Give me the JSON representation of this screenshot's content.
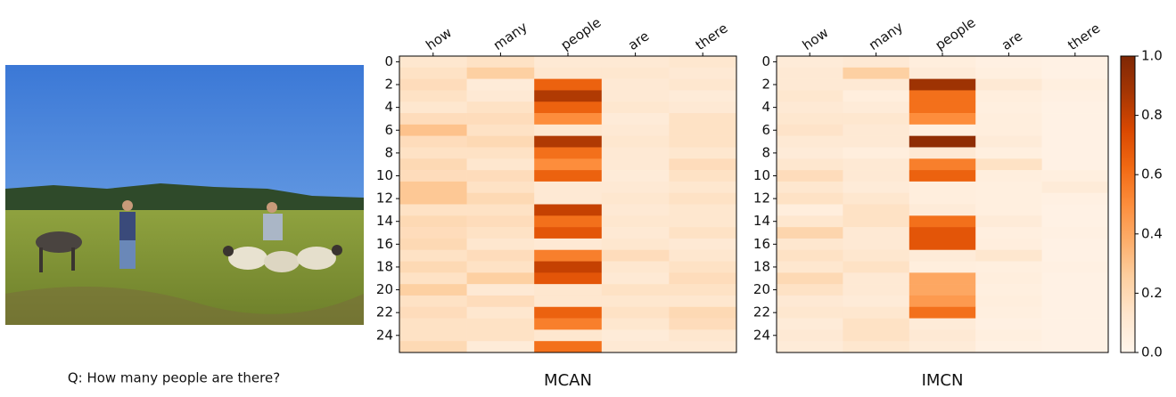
{
  "question": "Q: How many people are there?",
  "colorbar": {
    "zlim": [
      0,
      1
    ],
    "zticks": [
      {
        "value": 0,
        "label": "0.0"
      },
      {
        "value": 0.2,
        "label": "0.2"
      },
      {
        "value": 0.4,
        "label": "0.4"
      },
      {
        "value": 0.6,
        "label": "0.6"
      },
      {
        "value": 0.8,
        "label": "0.8"
      },
      {
        "value": 1,
        "label": "1.0"
      }
    ],
    "colors": [
      "#fff5eb",
      "#fee6ce",
      "#fdd0a2",
      "#fdae6b",
      "#fd8d3c",
      "#f16913",
      "#d94801",
      "#a63603",
      "#7f2704"
    ]
  },
  "chart_data": [
    {
      "type": "heatmap",
      "title": "MCAN",
      "categories": [
        "how",
        "many",
        "people",
        "are",
        "there"
      ],
      "ylim": [
        -0.5,
        25.5
      ],
      "yticks": [
        0,
        2,
        4,
        6,
        8,
        10,
        12,
        14,
        16,
        18,
        20,
        22,
        24
      ],
      "z": [
        [
          0.12,
          0.15,
          0.1,
          0.1,
          0.12
        ],
        [
          0.15,
          0.25,
          0.12,
          0.12,
          0.1
        ],
        [
          0.18,
          0.08,
          0.65,
          0.1,
          0.12
        ],
        [
          0.15,
          0.1,
          0.85,
          0.1,
          0.08
        ],
        [
          0.12,
          0.15,
          0.65,
          0.12,
          0.1
        ],
        [
          0.18,
          0.18,
          0.5,
          0.08,
          0.15
        ],
        [
          0.3,
          0.15,
          0.12,
          0.1,
          0.15
        ],
        [
          0.18,
          0.2,
          0.85,
          0.12,
          0.15
        ],
        [
          0.15,
          0.15,
          0.6,
          0.1,
          0.12
        ],
        [
          0.2,
          0.12,
          0.5,
          0.1,
          0.18
        ],
        [
          0.18,
          0.18,
          0.65,
          0.08,
          0.15
        ],
        [
          0.28,
          0.15,
          0.1,
          0.1,
          0.12
        ],
        [
          0.28,
          0.2,
          0.1,
          0.12,
          0.15
        ],
        [
          0.15,
          0.15,
          0.8,
          0.1,
          0.12
        ],
        [
          0.2,
          0.18,
          0.6,
          0.12,
          0.12
        ],
        [
          0.18,
          0.15,
          0.7,
          0.1,
          0.15
        ],
        [
          0.2,
          0.12,
          0.1,
          0.12,
          0.1
        ],
        [
          0.15,
          0.18,
          0.55,
          0.18,
          0.12
        ],
        [
          0.2,
          0.15,
          0.8,
          0.12,
          0.15
        ],
        [
          0.15,
          0.25,
          0.7,
          0.1,
          0.18
        ],
        [
          0.25,
          0.1,
          0.12,
          0.15,
          0.15
        ],
        [
          0.15,
          0.18,
          0.12,
          0.12,
          0.12
        ],
        [
          0.18,
          0.12,
          0.65,
          0.15,
          0.2
        ],
        [
          0.15,
          0.15,
          0.55,
          0.12,
          0.18
        ],
        [
          0.15,
          0.15,
          0.12,
          0.08,
          0.12
        ],
        [
          0.2,
          0.08,
          0.6,
          0.1,
          0.1
        ]
      ]
    },
    {
      "type": "heatmap",
      "title": "IMCN",
      "categories": [
        "how",
        "many",
        "people",
        "are",
        "there"
      ],
      "ylim": [
        -0.5,
        25.5
      ],
      "yticks": [
        0,
        2,
        4,
        6,
        8,
        10,
        12,
        14,
        16,
        18,
        20,
        22,
        24
      ],
      "z": [
        [
          0.08,
          0.1,
          0.06,
          0.04,
          0.03
        ],
        [
          0.1,
          0.25,
          0.08,
          0.05,
          0.03
        ],
        [
          0.1,
          0.1,
          0.9,
          0.1,
          0.05
        ],
        [
          0.12,
          0.06,
          0.6,
          0.06,
          0.04
        ],
        [
          0.1,
          0.08,
          0.6,
          0.05,
          0.03
        ],
        [
          0.12,
          0.12,
          0.5,
          0.06,
          0.03
        ],
        [
          0.14,
          0.1,
          0.05,
          0.06,
          0.03
        ],
        [
          0.1,
          0.1,
          0.95,
          0.08,
          0.03
        ],
        [
          0.08,
          0.06,
          0.1,
          0.05,
          0.03
        ],
        [
          0.12,
          0.1,
          0.55,
          0.15,
          0.03
        ],
        [
          0.18,
          0.1,
          0.65,
          0.06,
          0.05
        ],
        [
          0.12,
          0.08,
          0.06,
          0.05,
          0.08
        ],
        [
          0.15,
          0.12,
          0.06,
          0.05,
          0.04
        ],
        [
          0.06,
          0.15,
          0.08,
          0.05,
          0.03
        ],
        [
          0.12,
          0.15,
          0.6,
          0.08,
          0.03
        ],
        [
          0.22,
          0.1,
          0.7,
          0.05,
          0.04
        ],
        [
          0.12,
          0.1,
          0.7,
          0.06,
          0.03
        ],
        [
          0.15,
          0.12,
          0.08,
          0.12,
          0.03
        ],
        [
          0.12,
          0.15,
          0.06,
          0.05,
          0.04
        ],
        [
          0.2,
          0.1,
          0.4,
          0.06,
          0.03
        ],
        [
          0.15,
          0.1,
          0.4,
          0.05,
          0.03
        ],
        [
          0.1,
          0.08,
          0.45,
          0.06,
          0.03
        ],
        [
          0.12,
          0.12,
          0.6,
          0.05,
          0.03
        ],
        [
          0.08,
          0.15,
          0.08,
          0.04,
          0.03
        ],
        [
          0.1,
          0.15,
          0.1,
          0.05,
          0.03
        ],
        [
          0.08,
          0.12,
          0.08,
          0.04,
          0.03
        ]
      ]
    }
  ]
}
